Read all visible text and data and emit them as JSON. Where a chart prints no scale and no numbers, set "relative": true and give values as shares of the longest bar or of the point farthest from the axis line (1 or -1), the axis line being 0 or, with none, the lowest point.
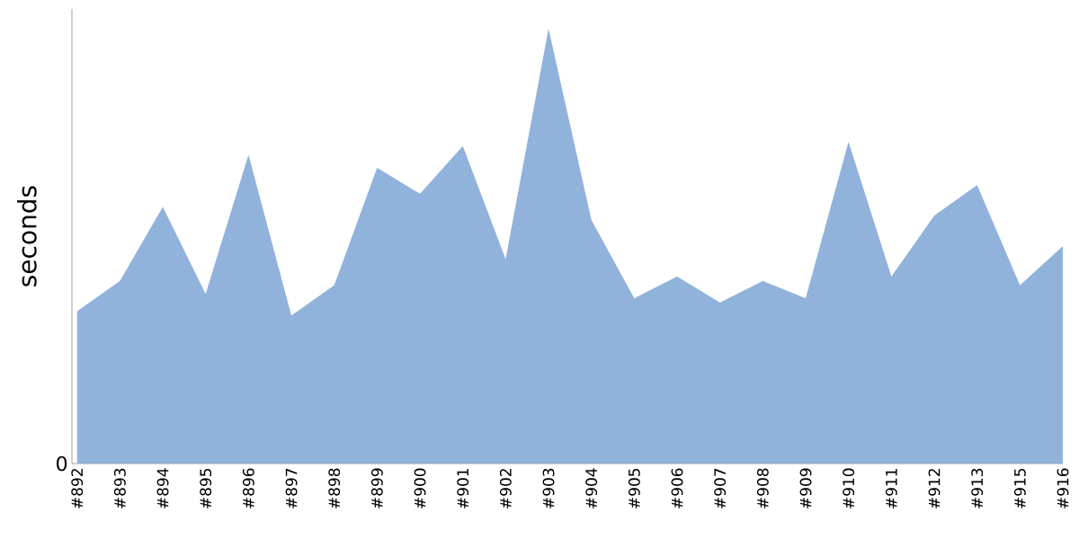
{
  "chart_data": {
    "type": "area",
    "ylabel": "seconds",
    "relative": true,
    "annotations": [
      "0"
    ],
    "categories": [
      "#892",
      "#893",
      "#894",
      "#895",
      "#896",
      "#897",
      "#898",
      "#899",
      "#900",
      "#901",
      "#902",
      "#903",
      "#904",
      "#905",
      "#906",
      "#907",
      "#908",
      "#909",
      "#910",
      "#911",
      "#912",
      "#913",
      "#915",
      "#916"
    ],
    "values": [
      0.35,
      0.42,
      0.59,
      0.39,
      0.71,
      0.34,
      0.41,
      0.68,
      0.62,
      0.73,
      0.47,
      1,
      0.56,
      0.38,
      0.43,
      0.37,
      0.42,
      0.38,
      0.74,
      0.43,
      0.57,
      0.64,
      0.41,
      0.5
    ],
    "color": "#91b3db"
  }
}
